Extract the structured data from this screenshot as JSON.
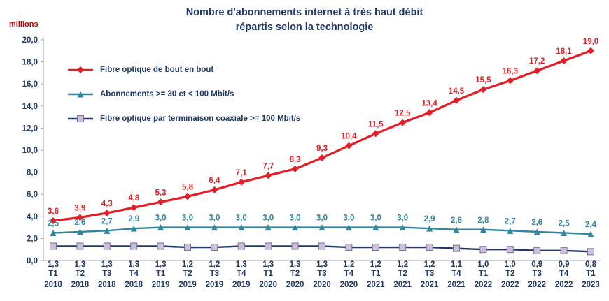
{
  "chart_data": {
    "type": "line",
    "title": "Nombre d'abonnements internet à très haut débit répartis selon la technologie",
    "title_lines": [
      "Nombre d'abonnements internet à très haut débit",
      "répartis selon la technologie"
    ],
    "ylabel": "millions",
    "ylim": [
      0,
      20
    ],
    "ytick_step": 2,
    "grid": false,
    "legend_position": "inside-top-left",
    "decimal_separator": ",",
    "categories": [
      "T1 2018",
      "T2 2018",
      "T3 2018",
      "T4 2018",
      "T1 2019",
      "T2 2019",
      "T3 2019",
      "T4 2019",
      "T1 2020",
      "T2 2020",
      "T3 2020",
      "T4 2020",
      "T1 2021",
      "T2 2021",
      "T3 2021",
      "T4 2021",
      "T1 2022",
      "T2 2022",
      "T3 2022",
      "T4 2022",
      "T1 2023"
    ],
    "series": [
      {
        "name": "Fibre optique de bout en bout",
        "marker": "diamond",
        "color": "#E31E26",
        "label_color": "#E31E26",
        "label_position": "above",
        "values": [
          3.6,
          3.9,
          4.3,
          4.8,
          5.3,
          5.8,
          6.4,
          7.1,
          7.7,
          8.3,
          9.3,
          10.4,
          11.5,
          12.5,
          13.4,
          14.5,
          15.5,
          16.3,
          17.2,
          18.1,
          19.0
        ]
      },
      {
        "name": "Abonnements >= 30 et < 100 Mbit/s",
        "marker": "triangle",
        "color": "#31859C",
        "label_color": "#31859C",
        "label_position": "above",
        "values": [
          2.5,
          2.6,
          2.7,
          2.9,
          3.0,
          3.0,
          3.0,
          3.0,
          3.0,
          3.0,
          3.0,
          3.0,
          3.0,
          3.0,
          2.9,
          2.8,
          2.8,
          2.7,
          2.6,
          2.5,
          2.4
        ]
      },
      {
        "name": "Fibre optique par terminaison coaxiale >= 100 Mbit/s",
        "marker": "square",
        "color": "#1F3864",
        "marker_fill": "#CCC1DA",
        "marker_stroke": "#7B6FA0",
        "label_color": "#1F3864",
        "label_position": "below",
        "values": [
          1.3,
          1.3,
          1.3,
          1.3,
          1.3,
          1.2,
          1.2,
          1.3,
          1.3,
          1.3,
          1.3,
          1.2,
          1.2,
          1.2,
          1.2,
          1.1,
          1.0,
          1.0,
          0.9,
          0.9,
          0.8
        ]
      }
    ],
    "colors": {
      "title": "#1F3864",
      "axis_text": "#1F3864",
      "unit_label": "#C00000",
      "axis_line": "#A6A6A6",
      "legend_text": "#1F3864"
    }
  }
}
